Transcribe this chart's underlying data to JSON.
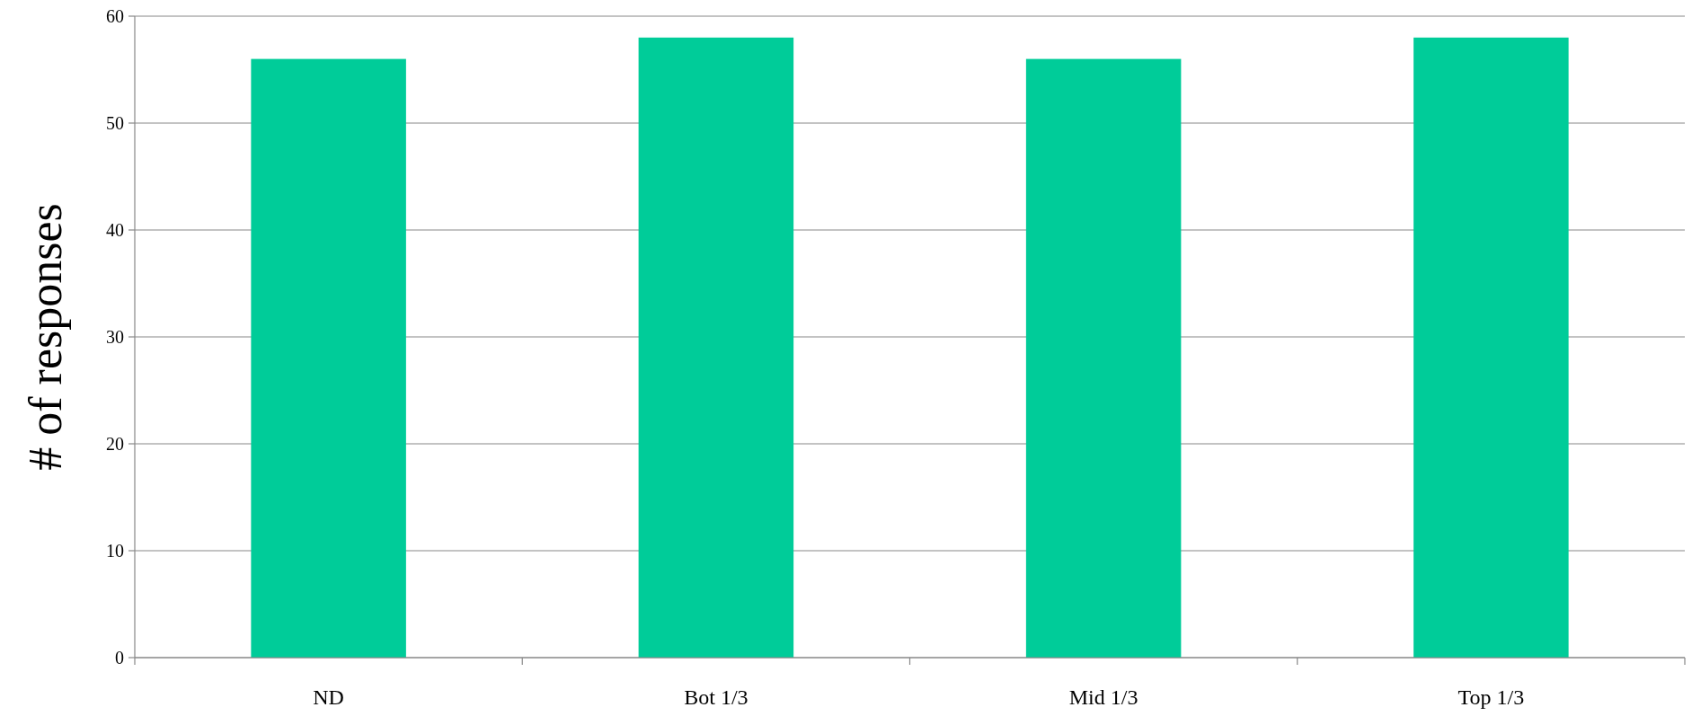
{
  "chart_data": {
    "type": "bar",
    "ylabel": "# of responses",
    "categories": [
      "ND",
      "Bot 1/3",
      "Mid 1/3",
      "Top 1/3"
    ],
    "values": [
      56,
      58,
      56,
      58
    ],
    "color": "#00cc99",
    "ylim": [
      0,
      60
    ],
    "yticks": [
      0,
      10,
      20,
      30,
      40,
      50,
      60
    ],
    "grid": "y"
  }
}
